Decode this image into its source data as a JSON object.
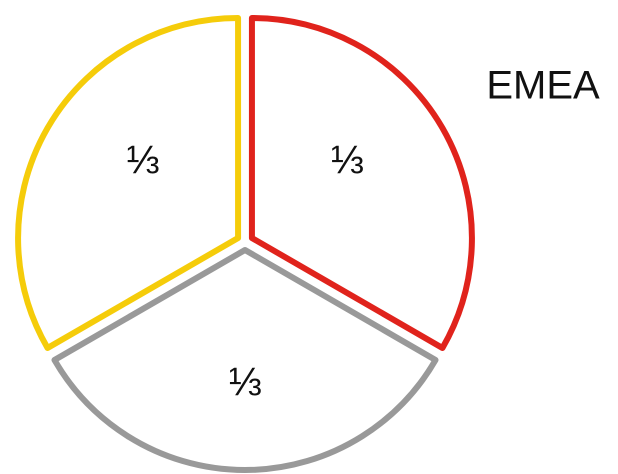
{
  "chart_data": {
    "type": "pie",
    "title": "EMEA",
    "categories": [
      null,
      null,
      null
    ],
    "values": [
      0.3333,
      0.3333,
      0.3333
    ],
    "value_labels": [
      "⅓",
      "⅓",
      "⅓"
    ],
    "colors": [
      "#e0231c",
      "#999999",
      "#f5cc0a"
    ]
  }
}
